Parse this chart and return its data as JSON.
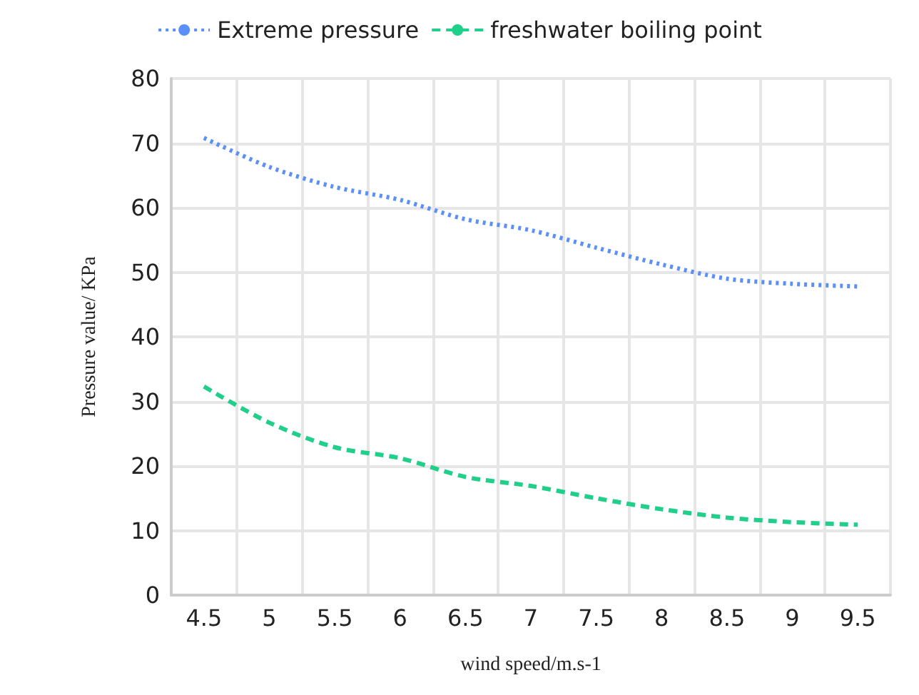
{
  "chart_data": {
    "type": "line",
    "xlabel": "wind speed/m.s-1",
    "ylabel": "Pressure value/ KPa",
    "categories": [
      "4.5",
      "5",
      "5.5",
      "6",
      "6.5",
      "7",
      "7.5",
      "8",
      "8.5",
      "9",
      "9.5"
    ],
    "series": [
      {
        "name": "Extreme pressure",
        "color": "#5b8ff9",
        "line_style": "dotted",
        "values": [
          70.8,
          66.3,
          63.2,
          61.2,
          58.2,
          56.5,
          53.8,
          51.2,
          49.0,
          48.2,
          47.8
        ]
      },
      {
        "name": "freshwater boiling point",
        "color": "#1fcf8a",
        "line_style": "dashed",
        "values": [
          32.3,
          26.7,
          22.9,
          21.2,
          18.3,
          16.9,
          15.0,
          13.3,
          12.0,
          11.3,
          10.9
        ]
      }
    ],
    "ylim": [
      0,
      80
    ],
    "yticks": [
      0,
      10,
      20,
      30,
      40,
      50,
      60,
      70,
      80
    ],
    "grid": true,
    "legend": "top",
    "marker": "none"
  }
}
